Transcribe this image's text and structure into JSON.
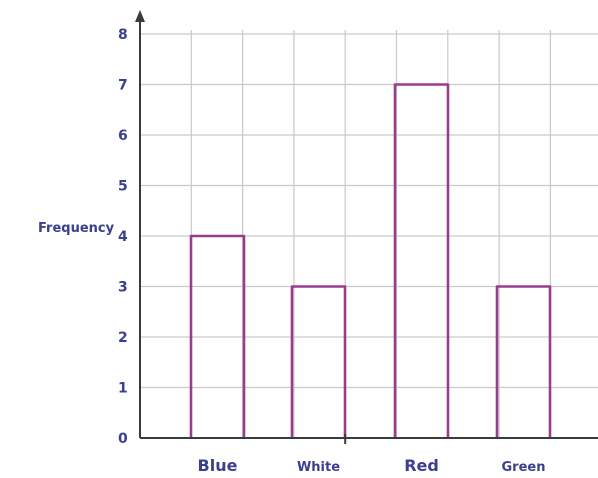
{
  "colors": {
    "bar": "#9b3b8e",
    "grid": "#c9c9c9",
    "axis": "#3b3b3b",
    "text": "#3a3f8f"
  },
  "chart_data": {
    "type": "bar",
    "title": "",
    "xlabel": "",
    "ylabel": "Frequency",
    "categories": [
      "Blue",
      "White",
      "Red",
      "Green"
    ],
    "values": [
      4,
      3,
      7,
      3
    ],
    "ylim": [
      0,
      8
    ],
    "yticks": [
      "0",
      "1",
      "2",
      "3",
      "4",
      "5",
      "6",
      "7",
      "8"
    ],
    "grid": true,
    "style": "hand-drawn bar outlines (no fill)"
  }
}
